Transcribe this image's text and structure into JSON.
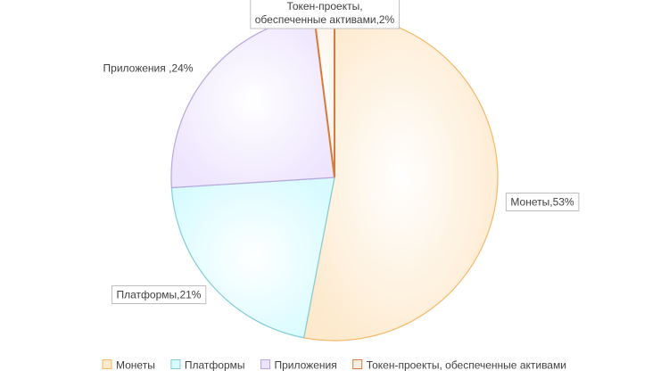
{
  "chart_data": {
    "type": "pie",
    "title": "",
    "categories": [
      "Монеты",
      "Платформы",
      "Приложения",
      "Токен-проекты, обеспеченные активами"
    ],
    "values": [
      53,
      21,
      24,
      2
    ],
    "data_labels": [
      [
        "Монеты,53%"
      ],
      [
        "Платформы,21%"
      ],
      [
        "Приложения ,24%"
      ],
      [
        "Токен-проекты,",
        "обеспеченные активами,2%"
      ]
    ],
    "fill_colors": [
      "#fde9cc",
      "#d7fbff",
      "#ede4fd",
      "#fdf1e6"
    ],
    "stroke_colors": [
      "#f6b86a",
      "#83ccd8",
      "#b9a6dc",
      "#d97a3a"
    ],
    "legend_position": "bottom"
  }
}
